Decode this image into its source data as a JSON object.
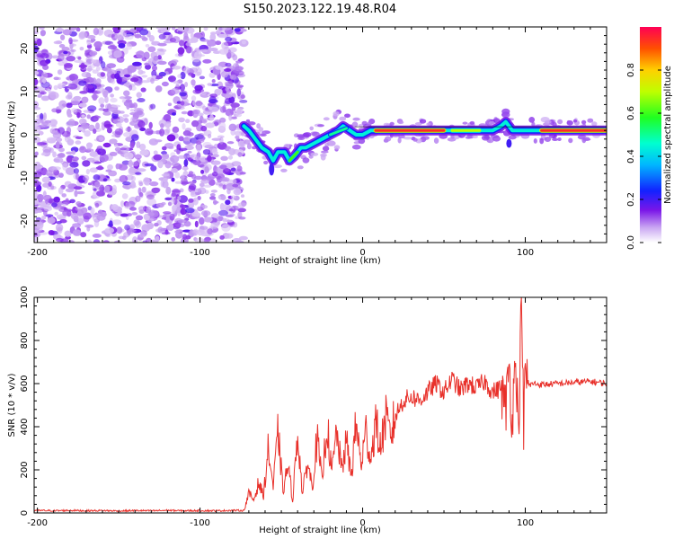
{
  "title": "S150.2023.122.19.48.R04",
  "chart_data": [
    {
      "type": "heatmap",
      "xlabel": "Height of straight line (km)",
      "ylabel": "Frequency (Hz)",
      "xlim": [
        -202,
        150
      ],
      "ylim": [
        -25,
        25
      ],
      "xticks": [
        -200,
        -100,
        0,
        100
      ],
      "yticks": [
        -20,
        -10,
        0,
        10,
        20
      ],
      "colorbar": {
        "label": "Normalized spectral amplitude",
        "range": [
          0,
          1
        ],
        "ticks": [
          0.0,
          0.2,
          0.4,
          0.6,
          0.8
        ]
      },
      "noise_region_x": [
        -202,
        -73
      ],
      "ridge": [
        {
          "x": -73,
          "y": 2
        },
        {
          "x": -70,
          "y": 1
        },
        {
          "x": -66,
          "y": -1
        },
        {
          "x": -62,
          "y": -3
        },
        {
          "x": -58,
          "y": -4
        },
        {
          "x": -55,
          "y": -6
        },
        {
          "x": -52,
          "y": -4
        },
        {
          "x": -48,
          "y": -4
        },
        {
          "x": -45,
          "y": -6
        },
        {
          "x": -42,
          "y": -5
        },
        {
          "x": -38,
          "y": -3
        },
        {
          "x": -35,
          "y": -3
        },
        {
          "x": -30,
          "y": -2
        },
        {
          "x": -25,
          "y": -1
        },
        {
          "x": -20,
          "y": 0
        },
        {
          "x": -15,
          "y": 1
        },
        {
          "x": -12,
          "y": 2
        },
        {
          "x": -8,
          "y": 1
        },
        {
          "x": -4,
          "y": 0
        },
        {
          "x": 0,
          "y": 0
        },
        {
          "x": 5,
          "y": 1
        },
        {
          "x": 15,
          "y": 1
        },
        {
          "x": 30,
          "y": 1
        },
        {
          "x": 50,
          "y": 1
        },
        {
          "x": 70,
          "y": 1
        },
        {
          "x": 80,
          "y": 1
        },
        {
          "x": 85,
          "y": 2
        },
        {
          "x": 88,
          "y": 3
        },
        {
          "x": 92,
          "y": 1
        },
        {
          "x": 100,
          "y": 1
        },
        {
          "x": 120,
          "y": 1
        },
        {
          "x": 150,
          "y": 1
        }
      ],
      "hotspots": [
        {
          "x": 8,
          "y": 1,
          "x2": 50,
          "amp": 0.95
        },
        {
          "x": 110,
          "y": 1,
          "x2": 150,
          "amp": 0.95
        },
        {
          "x": 55,
          "y": 1,
          "x2": 72,
          "amp": 0.7
        },
        {
          "x": -45,
          "y": -5,
          "x2": -40,
          "amp": 0.6
        },
        {
          "x": -20,
          "y": 0,
          "x2": -10,
          "amp": 0.5
        }
      ]
    },
    {
      "type": "line",
      "xlabel": "Height of straight line (km)",
      "ylabel": "SNR (10 * v/v)",
      "xlim": [
        -202,
        150
      ],
      "ylim": [
        0,
        1000
      ],
      "xticks": [
        -200,
        -100,
        0,
        100
      ],
      "yticks": [
        0,
        200,
        400,
        600,
        800,
        1000
      ],
      "color": "#e8302a",
      "series": [
        {
          "name": "SNR",
          "x": [
            -202,
            -190,
            -180,
            -170,
            -160,
            -150,
            -140,
            -130,
            -120,
            -110,
            -100,
            -90,
            -80,
            -73,
            -70,
            -67,
            -64,
            -61,
            -58,
            -55,
            -52,
            -49,
            -46,
            -43,
            -40,
            -37,
            -34,
            -31,
            -28,
            -25,
            -22,
            -19,
            -16,
            -13,
            -10,
            -7,
            -4,
            -1,
            2,
            5,
            8,
            11,
            14,
            17,
            20,
            25,
            30,
            35,
            40,
            45,
            50,
            55,
            60,
            65,
            70,
            75,
            80,
            85,
            88,
            90,
            92,
            94,
            96,
            97,
            98,
            99,
            100,
            102,
            105,
            110,
            120,
            130,
            140,
            150
          ],
          "values": [
            12,
            10,
            12,
            10,
            11,
            9,
            11,
            10,
            12,
            10,
            11,
            10,
            12,
            11,
            90,
            60,
            140,
            80,
            300,
            120,
            380,
            100,
            220,
            60,
            380,
            80,
            240,
            120,
            350,
            140,
            420,
            180,
            380,
            200,
            330,
            170,
            420,
            220,
            380,
            250,
            420,
            300,
            440,
            350,
            450,
            520,
            540,
            520,
            560,
            600,
            560,
            620,
            570,
            600,
            580,
            610,
            560,
            580,
            480,
            700,
            420,
            760,
            350,
            800,
            990,
            350,
            660,
            590,
            600,
            595,
            600,
            605,
            610,
            600
          ]
        }
      ]
    }
  ]
}
